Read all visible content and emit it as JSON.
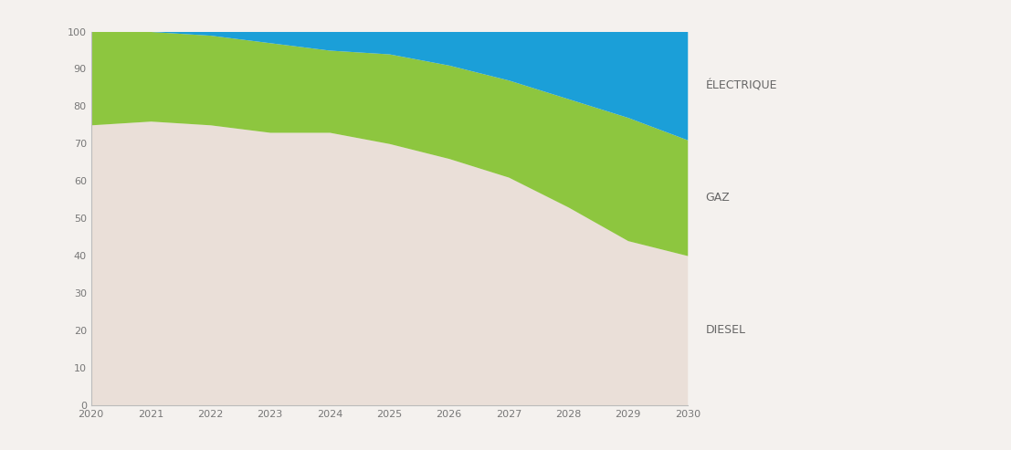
{
  "chart_data": {
    "type": "area",
    "stacked": true,
    "grid": false,
    "x": [
      2020,
      2021,
      2022,
      2023,
      2024,
      2025,
      2026,
      2027,
      2028,
      2029,
      2030
    ],
    "xlim": [
      2020,
      2030
    ],
    "xticks": [
      2020,
      2021,
      2022,
      2023,
      2024,
      2025,
      2026,
      2027,
      2028,
      2029,
      2030
    ],
    "ylim": [
      0,
      100
    ],
    "yticks": [
      0,
      10,
      20,
      30,
      40,
      50,
      60,
      70,
      80,
      90,
      100
    ],
    "series": [
      {
        "name": "DIESEL",
        "color": "#eadfd8",
        "values": [
          75,
          76,
          75,
          73,
          73,
          70,
          66,
          61,
          53,
          44,
          40
        ]
      },
      {
        "name": "GAZ",
        "color": "#8dc63f",
        "values": [
          25,
          24,
          24,
          24,
          22,
          24,
          25,
          26,
          29,
          33,
          31
        ]
      },
      {
        "name": "ÉLECTRIQUE",
        "color": "#1b9fd8",
        "values": [
          0,
          0,
          1,
          3,
          5,
          6,
          9,
          13,
          18,
          23,
          29
        ]
      }
    ]
  }
}
